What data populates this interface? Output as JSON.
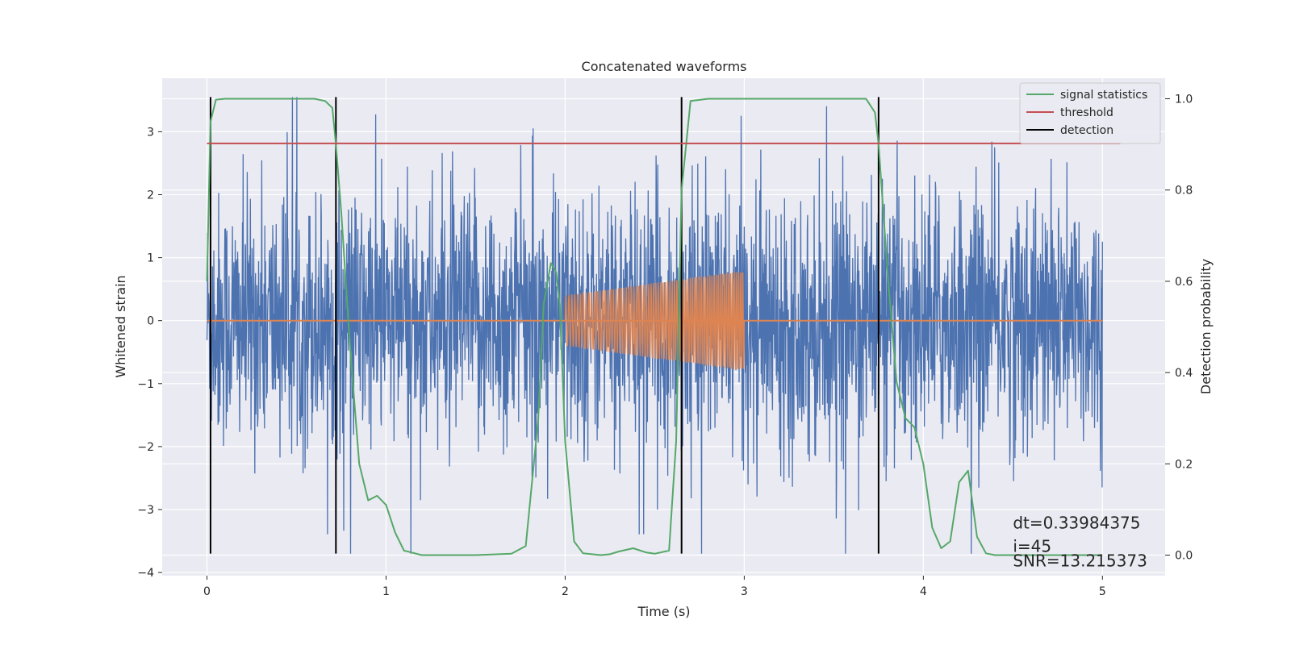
{
  "chart_data": {
    "type": "line",
    "title": "Concatenated waveforms",
    "xlabel": "Time (s)",
    "ylabel": "Whitened strain",
    "y2label": "Detection probability",
    "xlim": [
      -0.25,
      5.35
    ],
    "ylim": [
      -4.05,
      3.85
    ],
    "y2lim": [
      -0.045,
      1.045
    ],
    "xticks": [
      0,
      1,
      2,
      3,
      4,
      5
    ],
    "yticks": [
      -4,
      -3,
      -2,
      -1,
      0,
      1,
      2,
      3
    ],
    "y2ticks": [
      0.0,
      0.2,
      0.4,
      0.6,
      0.8,
      1.0
    ],
    "xtick_labels": [
      "0",
      "1",
      "2",
      "3",
      "4",
      "5"
    ],
    "ytick_labels": [
      "−4",
      "−3",
      "−2",
      "−1",
      "0",
      "1",
      "2",
      "3"
    ],
    "y2tick_labels": [
      "0.0",
      "0.2",
      "0.4",
      "0.6",
      "0.8",
      "1.0"
    ],
    "grid": true,
    "legend_position": "top-right",
    "colors": {
      "noise": "#4c72b0",
      "injection": "#dd8452",
      "signal_statistics": "#55a868",
      "threshold": "#c44e52",
      "detection": "#000000",
      "plot_background": "#eaeaf2",
      "grid": "#ffffff"
    },
    "legend": [
      {
        "label": "signal statistics",
        "color": "#55a868"
      },
      {
        "label": "threshold",
        "color": "#c44e52"
      },
      {
        "label": "detection",
        "color": "#000000"
      }
    ],
    "series": [
      {
        "name": "signal statistics",
        "axis": "right",
        "x": [
          0.0,
          0.02,
          0.05,
          0.1,
          0.2,
          0.4,
          0.6,
          0.66,
          0.7,
          0.72,
          0.75,
          0.8,
          0.85,
          0.9,
          0.95,
          1.0,
          1.05,
          1.1,
          1.2,
          1.3,
          1.5,
          1.7,
          1.78,
          1.85,
          1.88,
          1.92,
          1.95,
          1.97,
          2.0,
          2.05,
          2.1,
          2.2,
          2.25,
          2.3,
          2.38,
          2.45,
          2.5,
          2.58,
          2.62,
          2.65,
          2.7,
          2.8,
          3.0,
          3.2,
          3.5,
          3.68,
          3.73,
          3.75,
          3.8,
          3.85,
          3.9,
          3.95,
          4.0,
          4.05,
          4.1,
          4.15,
          4.2,
          4.25,
          4.3,
          4.35,
          4.4,
          4.6,
          5.0
        ],
        "values": [
          0.6,
          0.95,
          0.998,
          1.0,
          1.0,
          1.0,
          1.0,
          0.995,
          0.98,
          0.9,
          0.75,
          0.45,
          0.2,
          0.12,
          0.13,
          0.11,
          0.05,
          0.01,
          0.0,
          0.0,
          0.0,
          0.003,
          0.02,
          0.3,
          0.55,
          0.64,
          0.62,
          0.55,
          0.25,
          0.03,
          0.004,
          0.0,
          0.002,
          0.008,
          0.015,
          0.006,
          0.003,
          0.01,
          0.25,
          0.8,
          0.995,
          1.0,
          1.0,
          1.0,
          1.0,
          1.0,
          0.97,
          0.9,
          0.62,
          0.38,
          0.3,
          0.28,
          0.2,
          0.06,
          0.015,
          0.03,
          0.16,
          0.185,
          0.04,
          0.004,
          0.0,
          0.0,
          0.0
        ]
      },
      {
        "name": "threshold",
        "axis": "right",
        "x": [
          0.0,
          5.1
        ],
        "values": [
          0.902,
          0.902
        ]
      }
    ],
    "whitened_strain": {
      "x_range": [
        0.0,
        5.0
      ],
      "typical_amplitude": 1.0,
      "peak_range": [
        -3.7,
        3.55
      ]
    },
    "injection": {
      "x_range": [
        2.0,
        3.0
      ],
      "amplitude_start": 0.4,
      "amplitude_end": 0.8,
      "flat_range": [
        0.0,
        5.0
      ]
    },
    "detections": [
      0.02,
      0.72,
      2.65,
      3.75
    ],
    "detection_span": [
      -3.7,
      3.55
    ],
    "annotations": [
      {
        "text": "dt=0.33984375",
        "x": 4.5,
        "y": -3.3
      },
      {
        "text": " i=45",
        "x": 4.5,
        "y": -3.67
      },
      {
        "text": "SNR=13.215373",
        "x": 4.5,
        "y": -3.9
      }
    ]
  }
}
